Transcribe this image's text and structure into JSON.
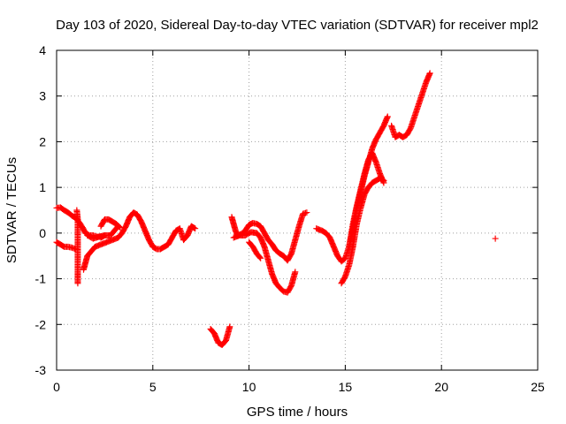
{
  "chart_data": {
    "type": "scatter",
    "title": "Day 103 of 2020, Sidereal Day-to-day VTEC variation (SDTVAR) for receiver mpl2",
    "xlabel": "GPS time / hours",
    "ylabel": "SDTVAR / TECUs",
    "xlim": [
      0,
      25
    ],
    "ylim": [
      -3,
      4
    ],
    "xticks": [
      "0",
      "5",
      "10",
      "15",
      "20",
      "25"
    ],
    "yticks": [
      "-3",
      "-2",
      "-1",
      "0",
      "1",
      "2",
      "3",
      "4"
    ],
    "grid": true,
    "marker": "+",
    "color": "#ff0000",
    "series": [
      {
        "segments": [
          [
            [
              0.0,
              0.55
            ],
            [
              0.2,
              0.56
            ],
            [
              0.4,
              0.5
            ],
            [
              0.6,
              0.45
            ],
            [
              0.8,
              0.38
            ],
            [
              1.0,
              0.33
            ],
            [
              1.2,
              0.22
            ],
            [
              1.35,
              0.12
            ],
            [
              1.5,
              0.0
            ],
            [
              1.7,
              -0.05
            ],
            [
              1.9,
              -0.05
            ],
            [
              2.1,
              -0.08
            ],
            [
              2.3,
              -0.08
            ]
          ],
          [
            [
              0.0,
              -0.2
            ],
            [
              0.2,
              -0.25
            ],
            [
              0.4,
              -0.3
            ],
            [
              0.6,
              -0.3
            ],
            [
              0.8,
              -0.32
            ],
            [
              1.0,
              -0.35
            ]
          ],
          [
            [
              1.05,
              0.5
            ],
            [
              1.1,
              0.3
            ],
            [
              1.1,
              0.0
            ],
            [
              1.1,
              -0.3
            ],
            [
              1.1,
              -0.6
            ],
            [
              1.1,
              -0.9
            ],
            [
              1.1,
              -1.1
            ]
          ],
          [
            [
              1.4,
              -0.8
            ],
            [
              1.5,
              -0.65
            ],
            [
              1.6,
              -0.5
            ],
            [
              1.8,
              -0.4
            ],
            [
              2.0,
              -0.3
            ],
            [
              2.3,
              -0.25
            ],
            [
              2.6,
              -0.2
            ],
            [
              2.9,
              -0.15
            ],
            [
              3.2,
              -0.1
            ],
            [
              3.4,
              0.0
            ],
            [
              3.6,
              0.15
            ],
            [
              3.8,
              0.35
            ],
            [
              4.0,
              0.45
            ],
            [
              4.2,
              0.4
            ],
            [
              4.4,
              0.25
            ],
            [
              4.6,
              0.05
            ],
            [
              4.8,
              -0.15
            ],
            [
              5.0,
              -0.3
            ],
            [
              5.2,
              -0.35
            ],
            [
              5.4,
              -0.35
            ],
            [
              5.6,
              -0.3
            ],
            [
              5.8,
              -0.25
            ],
            [
              6.0,
              -0.1
            ],
            [
              6.2,
              0.05
            ],
            [
              6.4,
              0.1
            ],
            [
              6.6,
              -0.15
            ],
            [
              6.8,
              -0.05
            ],
            [
              7.0,
              0.15
            ],
            [
              7.2,
              0.1
            ]
          ],
          [
            [
              1.6,
              -0.05
            ],
            [
              1.9,
              -0.12
            ],
            [
              2.2,
              -0.08
            ],
            [
              2.5,
              -0.05
            ],
            [
              2.8,
              -0.05
            ],
            [
              3.0,
              0.05
            ],
            [
              3.2,
              0.15
            ]
          ],
          [
            [
              2.3,
              0.15
            ],
            [
              2.5,
              0.3
            ],
            [
              2.7,
              0.3
            ],
            [
              2.9,
              0.25
            ],
            [
              3.1,
              0.2
            ],
            [
              3.3,
              0.12
            ]
          ],
          [
            [
              2.3,
              -0.1
            ],
            [
              2.5,
              -0.05
            ]
          ],
          [
            [
              8.0,
              -2.1
            ],
            [
              8.2,
              -2.2
            ],
            [
              8.4,
              -2.4
            ],
            [
              8.6,
              -2.45
            ],
            [
              8.8,
              -2.35
            ],
            [
              9.0,
              -2.05
            ]
          ],
          [
            [
              9.1,
              0.35
            ],
            [
              9.2,
              0.2
            ],
            [
              9.3,
              0.05
            ],
            [
              9.4,
              -0.05
            ],
            [
              9.6,
              -0.02
            ],
            [
              9.8,
              0.05
            ],
            [
              10.0,
              0.18
            ],
            [
              10.2,
              0.22
            ],
            [
              10.4,
              0.2
            ],
            [
              10.6,
              0.15
            ],
            [
              10.8,
              0.0
            ],
            [
              11.0,
              -0.15
            ],
            [
              11.2,
              -0.25
            ],
            [
              11.4,
              -0.38
            ],
            [
              11.6,
              -0.45
            ],
            [
              11.8,
              -0.5
            ],
            [
              12.0,
              -0.6
            ],
            [
              12.2,
              -0.45
            ],
            [
              12.4,
              -0.15
            ],
            [
              12.6,
              0.15
            ],
            [
              12.8,
              0.42
            ],
            [
              13.0,
              0.45
            ]
          ],
          [
            [
              9.2,
              -0.1
            ],
            [
              9.5,
              -0.05
            ],
            [
              9.8,
              -0.05
            ],
            [
              10.1,
              0.02
            ],
            [
              10.4,
              0.0
            ],
            [
              10.6,
              -0.1
            ],
            [
              10.8,
              -0.3
            ],
            [
              11.0,
              -0.6
            ],
            [
              11.2,
              -0.9
            ],
            [
              11.4,
              -1.1
            ],
            [
              11.6,
              -1.2
            ],
            [
              11.8,
              -1.28
            ],
            [
              12.0,
              -1.3
            ],
            [
              12.2,
              -1.15
            ],
            [
              12.4,
              -0.85
            ]
          ],
          [
            [
              10.0,
              -0.2
            ],
            [
              10.2,
              -0.3
            ],
            [
              10.4,
              -0.45
            ],
            [
              10.6,
              -0.55
            ]
          ],
          [
            [
              13.5,
              0.1
            ],
            [
              13.8,
              0.05
            ],
            [
              14.0,
              0.0
            ],
            [
              14.2,
              -0.1
            ],
            [
              14.4,
              -0.3
            ],
            [
              14.6,
              -0.5
            ],
            [
              14.8,
              -0.62
            ],
            [
              15.0,
              -0.55
            ],
            [
              15.2,
              -0.3
            ],
            [
              15.4,
              0.2
            ],
            [
              15.6,
              0.6
            ],
            [
              15.8,
              0.95
            ],
            [
              16.0,
              1.3
            ],
            [
              16.2,
              1.6
            ],
            [
              16.4,
              1.75
            ],
            [
              16.6,
              1.55
            ],
            [
              16.8,
              1.3
            ],
            [
              17.0,
              1.1
            ]
          ],
          [
            [
              14.8,
              -1.1
            ],
            [
              15.0,
              -0.95
            ],
            [
              15.2,
              -0.7
            ],
            [
              15.4,
              -0.3
            ],
            [
              15.6,
              0.2
            ],
            [
              15.8,
              0.55
            ],
            [
              16.0,
              0.85
            ],
            [
              16.2,
              1.0
            ],
            [
              16.4,
              1.1
            ],
            [
              16.6,
              1.15
            ],
            [
              16.8,
              1.2
            ],
            [
              17.0,
              1.15
            ]
          ],
          [
            [
              15.2,
              -0.3
            ],
            [
              15.4,
              0.1
            ],
            [
              15.6,
              0.55
            ],
            [
              15.8,
              0.9
            ],
            [
              16.0,
              1.25
            ],
            [
              16.2,
              1.55
            ],
            [
              16.4,
              1.85
            ],
            [
              16.6,
              2.05
            ],
            [
              16.8,
              2.2
            ],
            [
              17.0,
              2.35
            ],
            [
              17.2,
              2.55
            ]
          ],
          [
            [
              17.4,
              2.35
            ],
            [
              17.6,
              2.1
            ],
            [
              17.8,
              2.15
            ],
            [
              18.0,
              2.1
            ],
            [
              18.2,
              2.15
            ],
            [
              18.4,
              2.3
            ],
            [
              18.6,
              2.55
            ],
            [
              18.8,
              2.8
            ],
            [
              19.0,
              3.05
            ],
            [
              19.2,
              3.3
            ],
            [
              19.4,
              3.5
            ]
          ],
          [
            [
              22.8,
              -0.12
            ]
          ]
        ]
      }
    ]
  }
}
